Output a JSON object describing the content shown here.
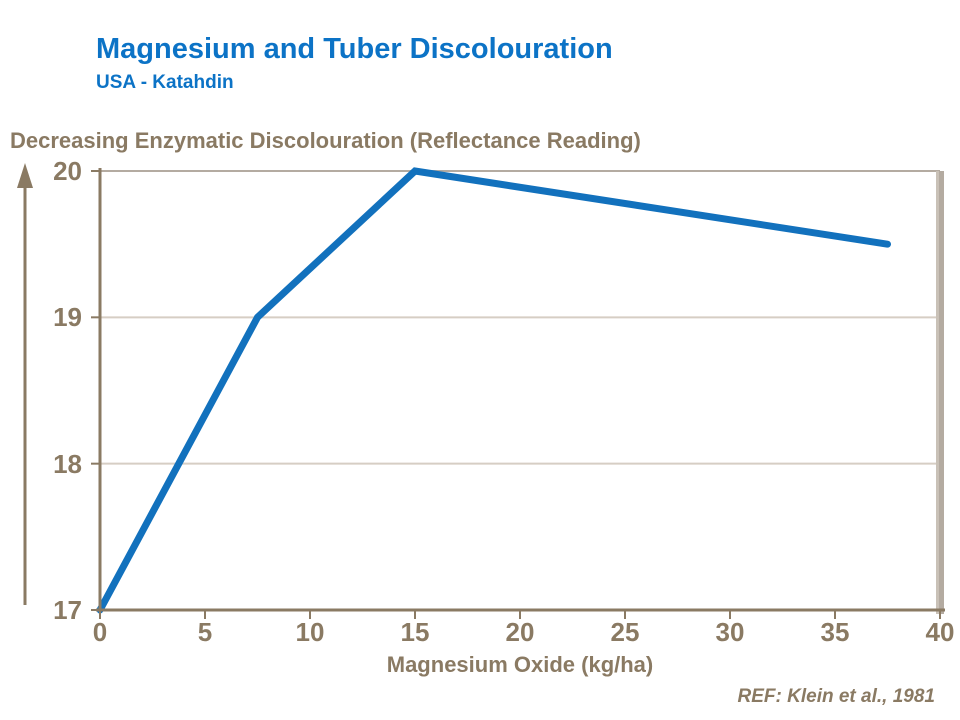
{
  "header": {
    "title": "Magnesium and Tuber Discolouration",
    "subtitle": "USA - Katahdin"
  },
  "footer": {
    "reference": "REF: Klein et al., 1981"
  },
  "colors": {
    "accent_blue": "#0c73c6",
    "line_blue": "#1271bd",
    "axis_brown": "#8a7a63",
    "grid_light": "#d6cec4",
    "frame_tan": "#b4aba1"
  },
  "chart_data": {
    "type": "line",
    "title": "Magnesium and Tuber Discolouration",
    "subtitle": "USA - Katahdin",
    "xlabel": "Magnesium Oxide (kg/ha)",
    "ylabel": "Decreasing Enzymatic Discolouration (Reflectance Reading)",
    "xlim": [
      0,
      40
    ],
    "ylim": [
      17,
      20
    ],
    "x_ticks": [
      0,
      5,
      10,
      15,
      20,
      25,
      30,
      35,
      40
    ],
    "y_ticks": [
      17,
      18,
      19,
      20
    ],
    "grid": "horizontal",
    "legend": "none",
    "series": [
      {
        "name": "Reflectance reading",
        "x": [
          0,
          7.5,
          15,
          37.5
        ],
        "values": [
          17,
          19,
          20,
          19.5
        ]
      }
    ],
    "annotations": [
      "upward arrow along y-axis indicating decreasing discolouration"
    ]
  }
}
